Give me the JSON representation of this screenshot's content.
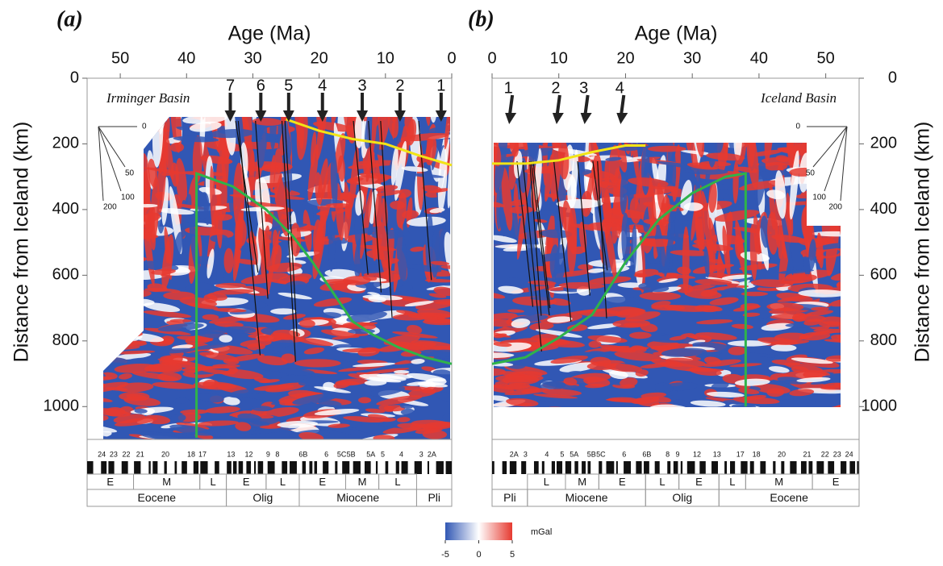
{
  "chart_data": [
    {
      "type": "heatmap",
      "panel_label": "(a)",
      "x_label": "Age (Ma)",
      "y_label": "Distance from Iceland (km)",
      "basin_label": "Irminger Basin",
      "xlim": [
        55,
        0
      ],
      "xticks": [
        50,
        40,
        30,
        20,
        10,
        0
      ],
      "ylim": [
        0,
        1100
      ],
      "yticks": [
        0,
        200,
        400,
        600,
        800,
        1000
      ],
      "arrows": {
        "labels": [
          "7",
          "6",
          "5",
          "4",
          "3",
          "2",
          "1"
        ],
        "ages": [
          33.4,
          28.8,
          24.6,
          19.5,
          13.5,
          7.8,
          1.6
        ]
      },
      "lines": [
        {
          "color": "#2fb34a",
          "x": [
            38.5,
            38.5,
            33,
            28,
            24,
            21,
            18,
            15,
            12,
            8,
            4,
            0
          ],
          "y": [
            1095,
            290,
            330,
            400,
            480,
            560,
            650,
            740,
            780,
            820,
            850,
            870
          ]
        },
        {
          "color": "#f2e416",
          "x": [
            25,
            20,
            15,
            10,
            5,
            0
          ],
          "y": [
            125,
            160,
            185,
            200,
            235,
            265
          ]
        }
      ],
      "fan_labels": [
        "0",
        "50",
        "100",
        "200"
      ],
      "chrons": {
        "labels": [
          "24",
          "23",
          "22",
          "21",
          "20",
          "18",
          "17",
          "13",
          "12",
          "9",
          "8",
          "6B",
          "6",
          "5C",
          "5B",
          "5A",
          "5",
          "4",
          "3",
          "2A"
        ],
        "ages": [
          52.8,
          51.0,
          49.1,
          47.0,
          43.2,
          39.3,
          37.6,
          33.3,
          30.6,
          27.7,
          26.3,
          22.4,
          18.9,
          16.6,
          15.2,
          12.2,
          10.4,
          7.6,
          4.6,
          3.0
        ]
      },
      "subepochs": {
        "labels": [
          "E",
          "M",
          "L",
          "E",
          "L",
          "E",
          "M",
          "L"
        ],
        "from": [
          55,
          48,
          38,
          34,
          28,
          23,
          16,
          11
        ],
        "to": [
          48,
          38,
          34,
          28,
          23,
          16,
          11,
          5.3
        ]
      },
      "epochs": {
        "labels": [
          "Eocene",
          "Olig",
          "Miocene",
          "Pli"
        ],
        "from": [
          55,
          34,
          23,
          5.3
        ],
        "to": [
          34,
          23,
          5.3,
          0
        ]
      }
    },
    {
      "type": "heatmap",
      "panel_label": "(b)",
      "x_label": "Age (Ma)",
      "y_label": "Distance from Iceland (km)",
      "basin_label": "Iceland Basin",
      "xlim": [
        0,
        55
      ],
      "xticks": [
        0,
        10,
        20,
        30,
        40,
        50
      ],
      "ylim": [
        0,
        1100
      ],
      "yticks": [
        0,
        200,
        400,
        600,
        800,
        1000
      ],
      "arrows": {
        "labels": [
          "1",
          "2",
          "3",
          "4"
        ],
        "ages": [
          2.8,
          9.9,
          14.1,
          19.5
        ]
      },
      "lines": [
        {
          "color": "#2fb34a",
          "x": [
            0,
            5,
            10,
            15,
            20,
            25,
            30,
            35,
            38,
            38
          ],
          "y": [
            870,
            850,
            790,
            720,
            560,
            430,
            350,
            300,
            290,
            1000
          ]
        },
        {
          "color": "#f2e416",
          "x": [
            0,
            5,
            10,
            15,
            20,
            23
          ],
          "y": [
            260,
            260,
            250,
            225,
            205,
            205
          ]
        }
      ],
      "fan_labels": [
        "0",
        "50",
        "100",
        "200"
      ],
      "chrons": {
        "labels": [
          "2A",
          "3",
          "4",
          "5",
          "5A",
          "5B",
          "5C",
          "6",
          "6B",
          "8",
          "9",
          "12",
          "13",
          "17",
          "18",
          "20",
          "21",
          "22",
          "23",
          "24"
        ],
        "ages": [
          3.3,
          5.0,
          8.2,
          10.5,
          12.3,
          14.9,
          16.3,
          19.8,
          23.2,
          26.3,
          27.8,
          30.7,
          33.7,
          37.2,
          39.6,
          43.4,
          47.2,
          49.9,
          51.7,
          53.5
        ]
      },
      "subepochs": {
        "labels": [
          "L",
          "M",
          "E",
          "L",
          "E",
          "L",
          "M",
          "E"
        ],
        "from": [
          5.3,
          11,
          16,
          23,
          28,
          34,
          38,
          48
        ],
        "to": [
          11,
          16,
          23,
          28,
          34,
          38,
          48,
          55
        ]
      },
      "epochs": {
        "labels": [
          "Pli",
          "Miocene",
          "Olig",
          "Eocene"
        ],
        "from": [
          0,
          5.3,
          23,
          34
        ],
        "to": [
          5.3,
          23,
          34,
          55
        ]
      }
    }
  ],
  "colorbar": {
    "label": "mGal",
    "lim": [
      -5,
      5
    ],
    "ticks": [
      -5,
      0,
      5
    ],
    "colors": [
      "#3157b4",
      "#ffffff",
      "#e63a30"
    ]
  }
}
